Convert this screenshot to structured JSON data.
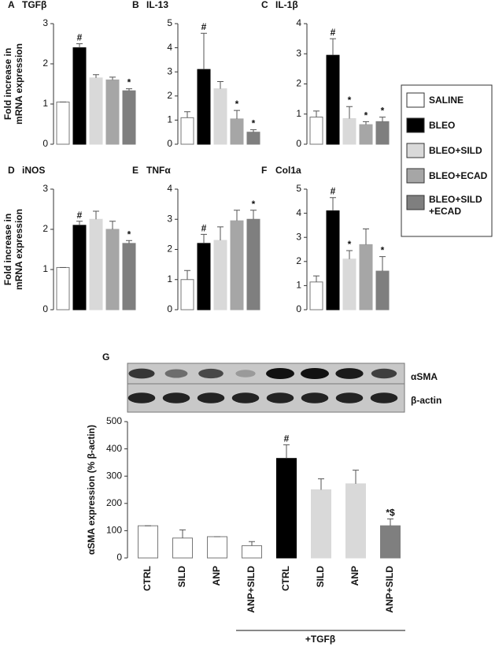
{
  "legend": {
    "series": [
      {
        "name": "SALINE",
        "color": "#ffffff"
      },
      {
        "name": "BLEO",
        "color": "#000000"
      },
      {
        "name": "BLEO+SILD",
        "color": "#d9d9d9"
      },
      {
        "name": "BLEO+ECAD",
        "color": "#a6a6a6"
      },
      {
        "name": "BLEO+SILD",
        "name2": "+ECAD",
        "color": "#7f7f7f"
      }
    ]
  },
  "chart_data": [
    {
      "type": "bar",
      "panel": "A",
      "title": "TGFβ",
      "ylabel": [
        "Fold increase in",
        "mRNA expression"
      ],
      "ylim": [
        0,
        3
      ],
      "yticks": [
        0,
        1,
        2,
        3
      ],
      "values": [
        1.05,
        2.4,
        1.65,
        1.6,
        1.33
      ],
      "errors": [
        0,
        0.1,
        0.08,
        0.07,
        0.05
      ],
      "annotations": [
        null,
        "#",
        null,
        null,
        "*"
      ]
    },
    {
      "type": "bar",
      "panel": "B",
      "title": "IL-13",
      "ylim": [
        0,
        5
      ],
      "yticks": [
        0,
        1,
        2,
        3,
        4,
        5
      ],
      "values": [
        1.1,
        3.1,
        2.3,
        1.05,
        0.5
      ],
      "errors": [
        0.25,
        1.5,
        0.3,
        0.35,
        0.1
      ],
      "annotations": [
        null,
        "#",
        null,
        "*",
        "*"
      ]
    },
    {
      "type": "bar",
      "panel": "C",
      "title": "IL-1β",
      "ylim": [
        0,
        4
      ],
      "yticks": [
        0,
        1,
        2,
        3,
        4
      ],
      "values": [
        0.9,
        2.95,
        0.85,
        0.65,
        0.75
      ],
      "errors": [
        0.2,
        0.55,
        0.4,
        0.1,
        0.15
      ],
      "annotations": [
        null,
        "#",
        "*",
        "*",
        "*"
      ]
    },
    {
      "type": "bar",
      "panel": "D",
      "title": "iNOS",
      "ylabel": [
        "Fold increase in",
        "mRNA expression"
      ],
      "ylim": [
        0,
        3
      ],
      "yticks": [
        0,
        1,
        2,
        3
      ],
      "values": [
        1.05,
        2.1,
        2.25,
        2.0,
        1.65
      ],
      "errors": [
        0,
        0.1,
        0.2,
        0.2,
        0.07
      ],
      "annotations": [
        null,
        "#",
        null,
        null,
        "*"
      ]
    },
    {
      "type": "bar",
      "panel": "E",
      "title": "TNFα",
      "ylim": [
        0,
        4
      ],
      "yticks": [
        0,
        1,
        2,
        3,
        4
      ],
      "values": [
        1.0,
        2.2,
        2.3,
        2.95,
        3.0
      ],
      "errors": [
        0.3,
        0.3,
        0.45,
        0.35,
        0.3
      ],
      "annotations": [
        null,
        "#",
        null,
        null,
        "*"
      ]
    },
    {
      "type": "bar",
      "panel": "F",
      "title": "Col1a",
      "ylim": [
        0,
        5
      ],
      "yticks": [
        0,
        1,
        2,
        3,
        4,
        5
      ],
      "values": [
        1.15,
        4.1,
        2.1,
        2.7,
        1.6
      ],
      "errors": [
        0.25,
        0.55,
        0.35,
        0.65,
        0.6
      ],
      "annotations": [
        null,
        "#",
        "*",
        null,
        "*"
      ]
    },
    {
      "type": "bar",
      "panel": "G",
      "blot_labels": [
        "αSMA",
        "β-actin"
      ],
      "ylabel": "αSMA expression (% β-actin)",
      "ylim": [
        0,
        500
      ],
      "yticks": [
        0,
        100,
        200,
        300,
        400,
        500
      ],
      "categories": [
        "CTRL",
        "SILD",
        "ANP",
        "ANP+SILD",
        "CTRL",
        "SILD",
        "ANP",
        "ANP+SILD"
      ],
      "values": [
        118,
        73,
        78,
        45,
        365,
        250,
        272,
        118
      ],
      "errors": [
        0,
        30,
        0,
        15,
        50,
        40,
        50,
        25
      ],
      "colors": [
        "#ffffff",
        "#ffffff",
        "#ffffff",
        "#ffffff",
        "#000000",
        "#d9d9d9",
        "#d9d9d9",
        "#7f7f7f"
      ],
      "annotations": [
        null,
        null,
        null,
        null,
        "#",
        null,
        null,
        "*$"
      ],
      "group_label": "+TGFβ"
    }
  ]
}
